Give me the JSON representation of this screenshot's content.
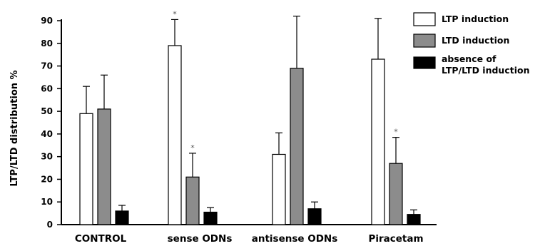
{
  "chart_data": {
    "type": "bar",
    "ylabel": "LTP/LTD distribution %",
    "xlabel": "",
    "ylim": [
      0,
      90
    ],
    "yticks": [
      0,
      10,
      20,
      30,
      40,
      50,
      60,
      70,
      80,
      90
    ],
    "categories": [
      "CONTROL",
      "sense ODNs",
      "antisense ODNs",
      "Piracetam"
    ],
    "series": [
      {
        "name": "LTP induction",
        "color": "#ffffff",
        "values": [
          49,
          79,
          31,
          73
        ],
        "error": [
          12,
          11.5,
          9.5,
          18
        ],
        "significant": [
          false,
          true,
          false,
          false
        ]
      },
      {
        "name": "LTD induction",
        "color": "#8c8c8c",
        "values": [
          51,
          21,
          69,
          27
        ],
        "error": [
          15,
          10.5,
          23,
          11.5
        ],
        "significant": [
          false,
          true,
          false,
          true
        ]
      },
      {
        "name": "absence of LTP/LTD induction",
        "legend_lines": [
          "absence of",
          "LTP/LTD induction"
        ],
        "color": "#000000",
        "values": [
          6,
          5.5,
          7,
          4.5
        ],
        "error": [
          2.5,
          2,
          3,
          2
        ],
        "significant": [
          false,
          false,
          false,
          false
        ]
      }
    ],
    "significance_marker": "*",
    "grid": false,
    "legend_position": "top-right"
  }
}
